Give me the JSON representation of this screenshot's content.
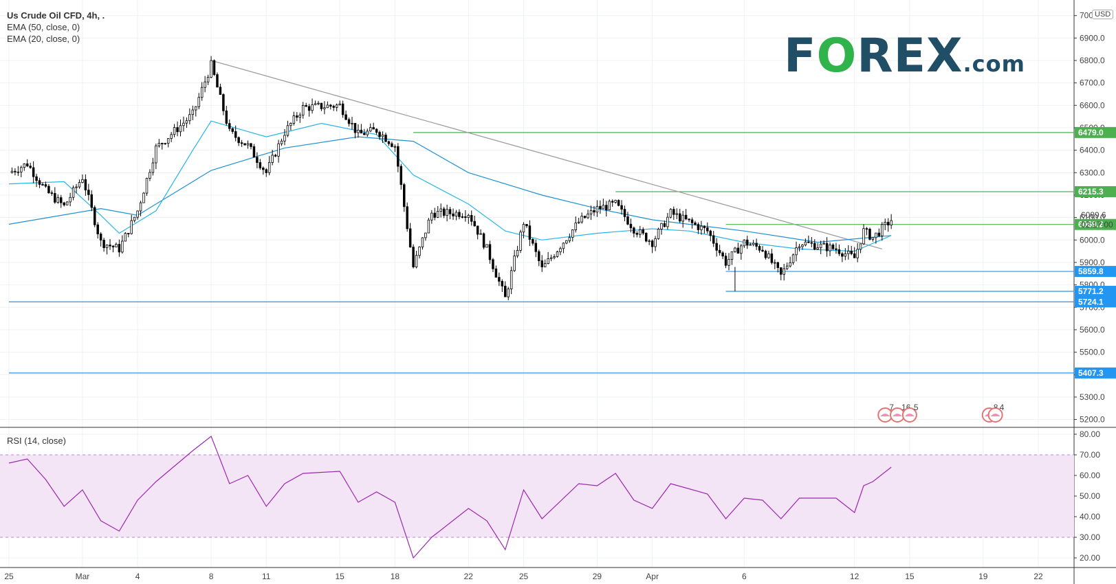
{
  "header": {
    "symbol_line": "Us Crude Oil CFD, 4h, .",
    "ema50": "EMA (50, close, 0)",
    "ema20": "EMA (20, close, 0)",
    "currency": "USD"
  },
  "logo": {
    "pre": "F",
    "o": "O",
    "post": "REX",
    "suffix": ".com"
  },
  "rsi": {
    "label": "RSI (14, close)"
  },
  "price_readout": {
    "value": "6089.6",
    "countdown": "02:17:00"
  },
  "events": [
    {
      "count": "7",
      "x": "Apr 13 16:00"
    },
    {
      "count": "16",
      "x": "Apr 14 08:00"
    },
    {
      "count": "5",
      "x": "Apr 15 00:00"
    },
    {
      "count": "8",
      "x": "Apr 19 08:00"
    },
    {
      "count": "4",
      "x": "Apr 19 16:00"
    }
  ],
  "colors": {
    "candle_up": "#ffffff",
    "candle_down": "#000000",
    "ema20": "#26b5e6",
    "ema50": "#1e90d2",
    "resistance": "#4caf50",
    "support": "#2196f3",
    "trendline": "#9e9e9e",
    "rsi_line": "#9c27b0",
    "rsi_band": "#f3e5f5"
  },
  "chart_data": [
    {
      "type": "candlestick",
      "title": "Us Crude Oil CFD, 4h",
      "timeframe": "4h",
      "x_axis_ticks": [
        "25",
        "Mar",
        "4",
        "8",
        "11",
        "15",
        "18",
        "22",
        "25",
        "29",
        "Apr",
        "6",
        "12",
        "15",
        "19",
        "22"
      ],
      "y_axis_ticks": [
        "5200.0",
        "5300.0",
        "5400.0",
        "5500.0",
        "5600.0",
        "5700.0",
        "5800.0",
        "5900.0",
        "6000.0",
        "6100.0",
        "6200.0",
        "6300.0",
        "6400.0",
        "6500.0",
        "6600.0",
        "6700.0",
        "6800.0",
        "6900.0",
        "7000.0"
      ],
      "ylim": [
        5165,
        7045
      ],
      "last_price": 6089.6,
      "price_path": [
        [
          "Feb 25",
          6300
        ],
        [
          "Feb 26",
          6340
        ],
        [
          "Feb 27",
          6220
        ],
        [
          "Feb 28",
          6150
        ],
        [
          "Mar 1",
          6280
        ],
        [
          "Mar 2",
          5990
        ],
        [
          "Mar 3",
          5960
        ],
        [
          "Mar 4",
          6130
        ],
        [
          "Mar 5",
          6410
        ],
        [
          "Mar 7",
          6560
        ],
        [
          "Mar 8",
          6780
        ],
        [
          "Mar 9",
          6480
        ],
        [
          "Mar 10",
          6420
        ],
        [
          "Mar 11",
          6300
        ],
        [
          "Mar 12",
          6480
        ],
        [
          "Mar 13",
          6590
        ],
        [
          "Mar 15",
          6600
        ],
        [
          "Mar 16",
          6470
        ],
        [
          "Mar 17",
          6490
        ],
        [
          "Mar 18",
          6420
        ],
        [
          "Mar 19",
          5880
        ],
        [
          "Mar 20",
          6120
        ],
        [
          "Mar 22",
          6120
        ],
        [
          "Mar 23",
          5960
        ],
        [
          "Mar 24",
          5740
        ],
        [
          "Mar 25",
          6080
        ],
        [
          "Mar 26",
          5870
        ],
        [
          "Mar 28",
          6080
        ],
        [
          "Mar 29",
          6140
        ],
        [
          "Mar 30",
          6160
        ],
        [
          "Mar 31",
          6050
        ],
        [
          "Apr 1",
          5990
        ],
        [
          "Apr 2",
          6120
        ],
        [
          "Apr 4",
          6040
        ],
        [
          "Apr 5",
          5900
        ],
        [
          "Apr 6",
          5990
        ],
        [
          "Apr 7",
          5960
        ],
        [
          "Apr 8",
          5840
        ],
        [
          "Apr 9",
          5990
        ],
        [
          "Apr 11",
          5960
        ],
        [
          "Apr 12",
          5920
        ],
        [
          "Apr 12 12:00",
          6040
        ],
        [
          "Apr 13",
          6010
        ],
        [
          "Apr 14",
          6089.6
        ]
      ],
      "ema20": [
        [
          "Feb 25",
          6250
        ],
        [
          "Feb 28",
          6260
        ],
        [
          "Mar 2",
          6110
        ],
        [
          "Mar 3",
          6030
        ],
        [
          "Mar 5",
          6130
        ],
        [
          "Mar 7",
          6400
        ],
        [
          "Mar 8",
          6530
        ],
        [
          "Mar 11",
          6460
        ],
        [
          "Mar 14",
          6520
        ],
        [
          "Mar 17",
          6470
        ],
        [
          "Mar 19",
          6290
        ],
        [
          "Mar 22",
          6160
        ],
        [
          "Mar 24",
          6040
        ],
        [
          "Mar 26",
          6000
        ],
        [
          "Mar 29",
          6030
        ],
        [
          "Apr 1",
          6050
        ],
        [
          "Apr 3",
          6040
        ],
        [
          "Apr 6",
          5990
        ],
        [
          "Apr 9",
          5960
        ],
        [
          "Apr 12",
          5950
        ],
        [
          "Apr 14",
          6020
        ]
      ],
      "ema50": [
        [
          "Feb 25",
          6070
        ],
        [
          "Mar 2",
          6140
        ],
        [
          "Mar 4",
          6110
        ],
        [
          "Mar 8",
          6310
        ],
        [
          "Mar 12",
          6410
        ],
        [
          "Mar 16",
          6460
        ],
        [
          "Mar 19",
          6440
        ],
        [
          "Mar 22",
          6300
        ],
        [
          "Mar 26",
          6200
        ],
        [
          "Mar 29",
          6140
        ],
        [
          "Apr 1",
          6090
        ],
        [
          "Apr 6",
          6040
        ],
        [
          "Apr 10",
          5990
        ],
        [
          "Apr 14",
          6020
        ]
      ],
      "levels": [
        {
          "label": "6479.0",
          "value": 6479.0,
          "kind": "resistance",
          "from": "Mar 19"
        },
        {
          "label": "6215.3",
          "value": 6215.3,
          "kind": "resistance",
          "from": "Mar 30"
        },
        {
          "label": "6069.2",
          "value": 6069.2,
          "kind": "resistance",
          "from": "Apr 5"
        },
        {
          "label": "5859.8",
          "value": 5859.8,
          "kind": "support",
          "from": "Apr 5"
        },
        {
          "label": "5771.2",
          "value": 5771.2,
          "kind": "support",
          "from": "Apr 5"
        },
        {
          "label": "5724.1",
          "value": 5724.1,
          "kind": "support",
          "from": "Feb 25"
        },
        {
          "label": "5407.3",
          "value": 5407.3,
          "kind": "support",
          "from": "Feb 25"
        }
      ],
      "trendline": [
        [
          "Mar 8",
          6800
        ],
        [
          "Apr 13 12:00",
          5960
        ]
      ]
    },
    {
      "type": "line",
      "title": "RSI (14, close)",
      "y_axis_ticks": [
        "20.00",
        "30.00",
        "40.00",
        "50.00",
        "60.00",
        "70.00",
        "80.00"
      ],
      "ylim": [
        16,
        82
      ],
      "band": [
        30,
        70
      ],
      "values": [
        [
          "Feb 25",
          66
        ],
        [
          "Feb 26",
          68
        ],
        [
          "Feb 27",
          58
        ],
        [
          "Feb 28",
          45
        ],
        [
          "Mar 1",
          53
        ],
        [
          "Mar 2",
          38
        ],
        [
          "Mar 3",
          33
        ],
        [
          "Mar 4",
          48
        ],
        [
          "Mar 5",
          57
        ],
        [
          "Mar 7",
          72
        ],
        [
          "Mar 8",
          79
        ],
        [
          "Mar 9",
          56
        ],
        [
          "Mar 10",
          60
        ],
        [
          "Mar 11",
          45
        ],
        [
          "Mar 12",
          56
        ],
        [
          "Mar 13",
          61
        ],
        [
          "Mar 15",
          62
        ],
        [
          "Mar 16",
          47
        ],
        [
          "Mar 17",
          52
        ],
        [
          "Mar 18",
          47
        ],
        [
          "Mar 19",
          20
        ],
        [
          "Mar 20",
          30
        ],
        [
          "Mar 22",
          44
        ],
        [
          "Mar 23",
          38
        ],
        [
          "Mar 24",
          24
        ],
        [
          "Mar 25",
          53
        ],
        [
          "Mar 26",
          39
        ],
        [
          "Mar 28",
          56
        ],
        [
          "Mar 29",
          55
        ],
        [
          "Mar 30",
          61
        ],
        [
          "Mar 31",
          48
        ],
        [
          "Apr 1",
          44
        ],
        [
          "Apr 2",
          56
        ],
        [
          "Apr 4",
          51
        ],
        [
          "Apr 5",
          39
        ],
        [
          "Apr 6",
          49
        ],
        [
          "Apr 7",
          48
        ],
        [
          "Apr 8",
          39
        ],
        [
          "Apr 9",
          49
        ],
        [
          "Apr 11",
          49
        ],
        [
          "Apr 12",
          42
        ],
        [
          "Apr 12 12:00",
          55
        ],
        [
          "Apr 13",
          57
        ],
        [
          "Apr 14",
          64
        ]
      ]
    }
  ]
}
